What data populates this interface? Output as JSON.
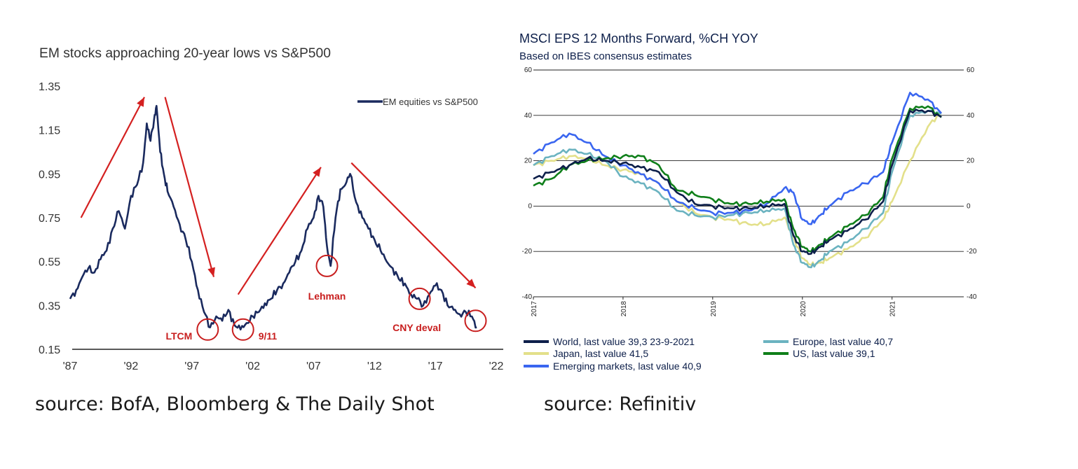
{
  "chart_data": [
    {
      "type": "line",
      "title": "EM stocks approaching 20-year lows vs S&P500",
      "xlabel": "",
      "ylabel": "",
      "ylim": [
        0.15,
        1.35
      ],
      "xlim": [
        1987,
        2022
      ],
      "y_ticks": [
        "1.35",
        "1.15",
        "0.95",
        "0.75",
        "0.55",
        "0.35",
        "0.15"
      ],
      "x_ticks": [
        "'87",
        "'92",
        "'97",
        "'02",
        "'07",
        "'12",
        "'17",
        "'22"
      ],
      "legend": {
        "position": "top-right"
      },
      "series": [
        {
          "name": "EM equities vs S&P500",
          "color": "#1a2a5e",
          "x": [
            1987.0,
            1987.5,
            1988.0,
            1988.5,
            1989.0,
            1989.5,
            1990.0,
            1990.5,
            1991.0,
            1991.5,
            1992.0,
            1992.5,
            1993.0,
            1993.3,
            1993.6,
            1993.9,
            1994.1,
            1994.4,
            1994.7,
            1995.0,
            1995.5,
            1996.0,
            1996.5,
            1997.0,
            1997.5,
            1998.0,
            1998.5,
            1999.0,
            1999.5,
            2000.0,
            2000.5,
            2001.0,
            2001.5,
            2002.0,
            2002.5,
            2003.0,
            2003.5,
            2004.0,
            2004.5,
            2005.0,
            2005.5,
            2006.0,
            2006.5,
            2007.0,
            2007.4,
            2007.8,
            2008.1,
            2008.4,
            2008.8,
            2009.2,
            2009.6,
            2010.0,
            2010.5,
            2011.0,
            2011.5,
            2012.0,
            2012.5,
            2013.0,
            2013.5,
            2014.0,
            2014.5,
            2015.0,
            2015.5,
            2016.0,
            2016.5,
            2017.0,
            2017.5,
            2018.0,
            2018.5,
            2019.0,
            2019.5,
            2020.0,
            2020.4
          ],
          "values": [
            0.38,
            0.42,
            0.48,
            0.52,
            0.5,
            0.56,
            0.6,
            0.7,
            0.78,
            0.7,
            0.85,
            0.9,
            1.0,
            1.18,
            1.1,
            1.2,
            1.26,
            1.05,
            0.95,
            0.87,
            0.8,
            0.72,
            0.65,
            0.55,
            0.42,
            0.32,
            0.25,
            0.3,
            0.28,
            0.33,
            0.26,
            0.24,
            0.27,
            0.3,
            0.32,
            0.36,
            0.38,
            0.42,
            0.45,
            0.5,
            0.55,
            0.6,
            0.7,
            0.75,
            0.85,
            0.8,
            0.62,
            0.53,
            0.75,
            0.88,
            0.9,
            0.95,
            0.82,
            0.75,
            0.7,
            0.65,
            0.6,
            0.55,
            0.52,
            0.47,
            0.45,
            0.4,
            0.38,
            0.35,
            0.4,
            0.44,
            0.42,
            0.35,
            0.33,
            0.31,
            0.32,
            0.3,
            0.25
          ]
        }
      ],
      "annotations": [
        {
          "label": "LTCM",
          "x": 1998.3,
          "y": 0.24
        },
        {
          "label": "9/11",
          "x": 2001.2,
          "y": 0.24
        },
        {
          "label": "Lehman",
          "x": 2008.1,
          "y": 0.53
        },
        {
          "label": "CNY deval",
          "x": 2015.7,
          "y": 0.38
        },
        {
          "label": "",
          "x": 2020.3,
          "y": 0.28
        }
      ],
      "arrows": [
        {
          "from": [
            1987.9,
            0.75
          ],
          "to": [
            1993.1,
            1.3
          ],
          "color": "#d42020"
        },
        {
          "from": [
            1994.8,
            1.3
          ],
          "to": [
            1998.8,
            0.48
          ],
          "color": "#d42020"
        },
        {
          "from": [
            2000.8,
            0.4
          ],
          "to": [
            2007.6,
            0.98
          ],
          "color": "#d42020"
        },
        {
          "from": [
            2010.1,
            1.0
          ],
          "to": [
            2020.3,
            0.43
          ],
          "color": "#d42020"
        }
      ],
      "annotation_color": "#c81e1e",
      "grid": false
    },
    {
      "type": "line",
      "title": "MSCI EPS 12 Months Forward, %CH YOY",
      "subtitle": "Based on IBES consensus estimates",
      "xlabel": "",
      "ylabel": "",
      "ylim": [
        -40,
        60
      ],
      "xlim": [
        2017.0,
        2021.8
      ],
      "y_ticks": [
        "60",
        "40",
        "20",
        "0",
        "-20",
        "-40"
      ],
      "x_ticks": [
        "2017",
        "2018",
        "2019",
        "2020",
        "2021"
      ],
      "grid": true,
      "legend": {
        "position": "bottom"
      },
      "series": [
        {
          "name": "World, last value 39,3 23-9-2021",
          "color": "#0d1f4a",
          "x": [
            2017.0,
            2017.2,
            2017.4,
            2017.6,
            2017.8,
            2018.0,
            2018.2,
            2018.4,
            2018.6,
            2018.8,
            2019.0,
            2019.2,
            2019.4,
            2019.6,
            2019.8,
            2019.9,
            2020.0,
            2020.1,
            2020.2,
            2020.3,
            2020.5,
            2020.7,
            2020.9,
            2021.0,
            2021.2,
            2021.4,
            2021.55
          ],
          "values": [
            12,
            15,
            18,
            21,
            20,
            19,
            17,
            15,
            6,
            1,
            0,
            -1,
            -1,
            0,
            1,
            -13,
            -20,
            -21,
            -18,
            -15,
            -11,
            -6,
            2,
            18,
            42,
            42,
            39.3
          ]
        },
        {
          "name": "Europe, last value 40,7",
          "color": "#6bb3c0",
          "x": [
            2017.0,
            2017.2,
            2017.4,
            2017.6,
            2017.8,
            2018.0,
            2018.2,
            2018.4,
            2018.6,
            2018.8,
            2019.0,
            2019.2,
            2019.4,
            2019.6,
            2019.8,
            2019.9,
            2020.0,
            2020.1,
            2020.2,
            2020.3,
            2020.5,
            2020.7,
            2020.9,
            2021.0,
            2021.2,
            2021.4,
            2021.55
          ],
          "values": [
            18,
            22,
            25,
            23,
            20,
            13,
            10,
            6,
            -2,
            -4,
            -5,
            -4,
            -3,
            -2,
            -1,
            -17,
            -25,
            -27,
            -24,
            -20,
            -16,
            -10,
            -3,
            15,
            40,
            42,
            40.7
          ]
        },
        {
          "name": "US, last value 39,1",
          "color": "#0f7f1a",
          "x": [
            2017.0,
            2017.2,
            2017.4,
            2017.6,
            2017.8,
            2018.0,
            2018.2,
            2018.4,
            2018.6,
            2018.8,
            2019.0,
            2019.2,
            2019.4,
            2019.6,
            2019.8,
            2019.9,
            2020.0,
            2020.1,
            2020.2,
            2020.3,
            2020.5,
            2020.7,
            2020.9,
            2021.0,
            2021.2,
            2021.4,
            2021.55
          ],
          "values": [
            9,
            12,
            18,
            20,
            21,
            22,
            22,
            18,
            7,
            5,
            3,
            1,
            1,
            2,
            3,
            -10,
            -18,
            -20,
            -17,
            -14,
            -9,
            -4,
            4,
            21,
            43,
            44,
            39.1
          ]
        },
        {
          "name": "Japan, last value 41,5",
          "color": "#e3e08a",
          "x": [
            2017.0,
            2017.2,
            2017.4,
            2017.6,
            2017.8,
            2018.0,
            2018.2,
            2018.4,
            2018.6,
            2018.8,
            2019.0,
            2019.2,
            2019.4,
            2019.6,
            2019.8,
            2019.9,
            2020.0,
            2020.1,
            2020.2,
            2020.3,
            2020.5,
            2020.7,
            2020.9,
            2021.0,
            2021.2,
            2021.4,
            2021.55
          ],
          "values": [
            18,
            20,
            22,
            21,
            18,
            16,
            14,
            10,
            2,
            -3,
            -5,
            -6,
            -8,
            -8,
            -5,
            -14,
            -23,
            -26,
            -25,
            -23,
            -19,
            -14,
            -6,
            2,
            20,
            35,
            41.5
          ]
        },
        {
          "name": "Emerging markets, last value 40,9",
          "color": "#3a66f0",
          "x": [
            2017.0,
            2017.2,
            2017.4,
            2017.6,
            2017.8,
            2018.0,
            2018.2,
            2018.4,
            2018.6,
            2018.8,
            2019.0,
            2019.2,
            2019.4,
            2019.6,
            2019.8,
            2019.9,
            2020.0,
            2020.1,
            2020.2,
            2020.3,
            2020.5,
            2020.7,
            2020.9,
            2021.0,
            2021.2,
            2021.4,
            2021.55
          ],
          "values": [
            23,
            28,
            32,
            28,
            22,
            18,
            14,
            10,
            2,
            -1,
            -3,
            -3,
            -2,
            1,
            8,
            6,
            -6,
            -8,
            -4,
            0,
            6,
            10,
            15,
            28,
            50,
            47,
            40.9
          ]
        }
      ]
    }
  ],
  "sources": {
    "left": "source: BofA, Bloomberg & The Daily Shot",
    "right": "source: Refinitiv"
  }
}
